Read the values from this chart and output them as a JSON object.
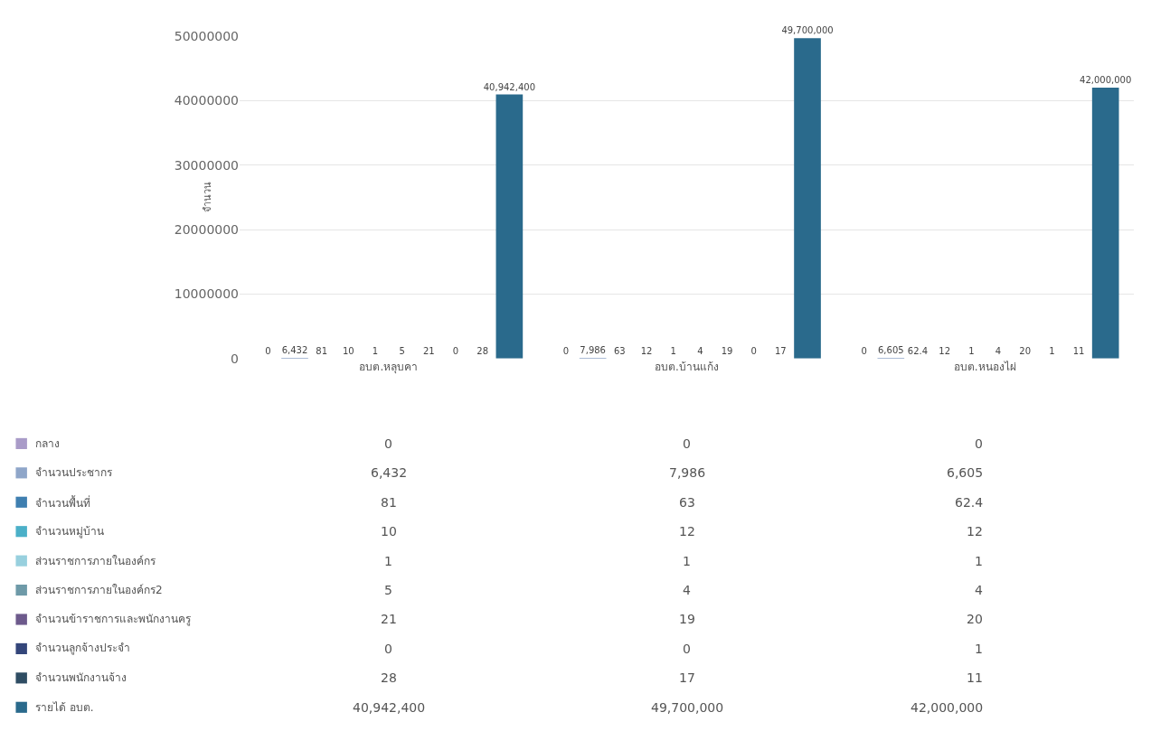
{
  "chart_data": {
    "type": "bar",
    "ylabel": "จำนวน",
    "categories": [
      "อบต.หลุบคา",
      "อบต.บ้านแก้ง",
      "อบต.หนองไผ่"
    ],
    "series": [
      {
        "name": "กลาง",
        "color": "#a99bc8",
        "values": [
          0,
          0,
          0
        ],
        "value_labels": [
          "0",
          "0",
          "0"
        ]
      },
      {
        "name": "จำนวนประชากร",
        "color": "#8fa6c9",
        "values": [
          6432,
          7986,
          6605
        ],
        "value_labels": [
          "6,432",
          "7,986",
          "6,605"
        ]
      },
      {
        "name": "จำนวนพื้นที่",
        "color": "#3f7fb0",
        "values": [
          81,
          63,
          62.4
        ],
        "value_labels": [
          "81",
          "63",
          "62.4"
        ]
      },
      {
        "name": "จำนวนหมู่บ้าน",
        "color": "#4bb0c8",
        "values": [
          10,
          12,
          12
        ],
        "value_labels": [
          "10",
          "12",
          "12"
        ]
      },
      {
        "name": "ส่วนราชการภายในองค์กร",
        "color": "#98d0de",
        "values": [
          1,
          1,
          1
        ],
        "value_labels": [
          "1",
          "1",
          "1"
        ]
      },
      {
        "name": "ส่วนราชการภายในองค์กร2",
        "color": "#6e9aa8",
        "values": [
          5,
          4,
          4
        ],
        "value_labels": [
          "5",
          "4",
          "4"
        ]
      },
      {
        "name": "จำนวนข้าราชการและพนักงานครู",
        "color": "#6d5a8c",
        "values": [
          21,
          19,
          20
        ],
        "value_labels": [
          "21",
          "19",
          "20"
        ]
      },
      {
        "name": "จำนวนลูกจ้างประจำ",
        "color": "#34467a",
        "values": [
          0,
          0,
          1
        ],
        "value_labels": [
          "0",
          "0",
          "1"
        ]
      },
      {
        "name": "จำนวนพนักงานจ้าง",
        "color": "#2f4d63",
        "values": [
          28,
          17,
          11
        ],
        "value_labels": [
          "28",
          "17",
          "11"
        ]
      },
      {
        "name": "รายได้ อบต.",
        "color": "#2a6a8c",
        "values": [
          40942400,
          49700000,
          42000000
        ],
        "value_labels": [
          "40,942,400",
          "49,700,000",
          "42,000,000"
        ]
      }
    ],
    "ylim": [
      0,
      50000000
    ],
    "yticks": [
      0,
      10000000,
      20000000,
      30000000,
      40000000,
      50000000
    ],
    "grid": "y",
    "legend": "bottom left"
  }
}
